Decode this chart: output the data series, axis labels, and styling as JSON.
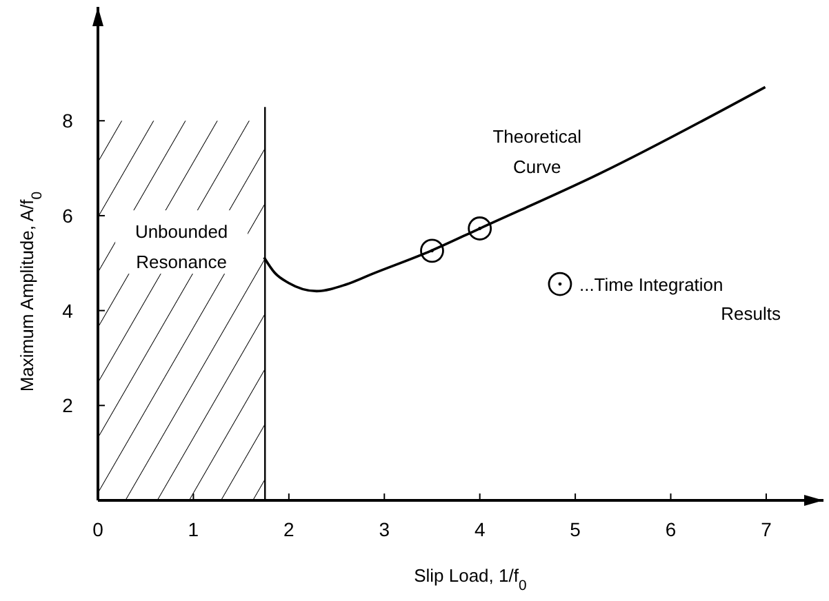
{
  "chart_data": {
    "type": "line",
    "xlabel": "Slip Load, 1/f$_{0}$",
    "ylabel": "Maximum Amplitude, A/f$_{0}$",
    "xlim": [
      0,
      7.6
    ],
    "ylim": [
      0,
      10.4
    ],
    "xticks": [
      0,
      1,
      2,
      3,
      4,
      5,
      6,
      7
    ],
    "yticks": [
      {
        "value": 0,
        "label": null
      },
      2,
      4,
      6,
      8
    ],
    "grid": false,
    "legend": "right",
    "line_style": "solid",
    "ref_lines": [
      {
        "axis": "x",
        "value": 1.75,
        "color": "#000000"
      }
    ],
    "bands": [
      {
        "axis": "x",
        "from": 0,
        "to": 1.75,
        "label": "Unbounded Resonance"
      }
    ],
    "series": [
      {
        "name": "Theoretical Curve",
        "type": "line",
        "color": "#000000",
        "marker": "none",
        "x": [
          1.74,
          1.85,
          2.0,
          2.29,
          2.6,
          2.87,
          3.49,
          4.0,
          5.27,
          6.99
        ],
        "values": [
          5.12,
          4.8,
          4.58,
          4.41,
          4.55,
          4.77,
          5.26,
          5.73,
          6.9,
          8.71
        ]
      },
      {
        "name": "...Time Integration Results",
        "type": "scatter",
        "color": "#000000",
        "marker": "circle",
        "x": [
          3.5,
          4.0
        ],
        "values": [
          5.26,
          5.73
        ]
      }
    ]
  }
}
